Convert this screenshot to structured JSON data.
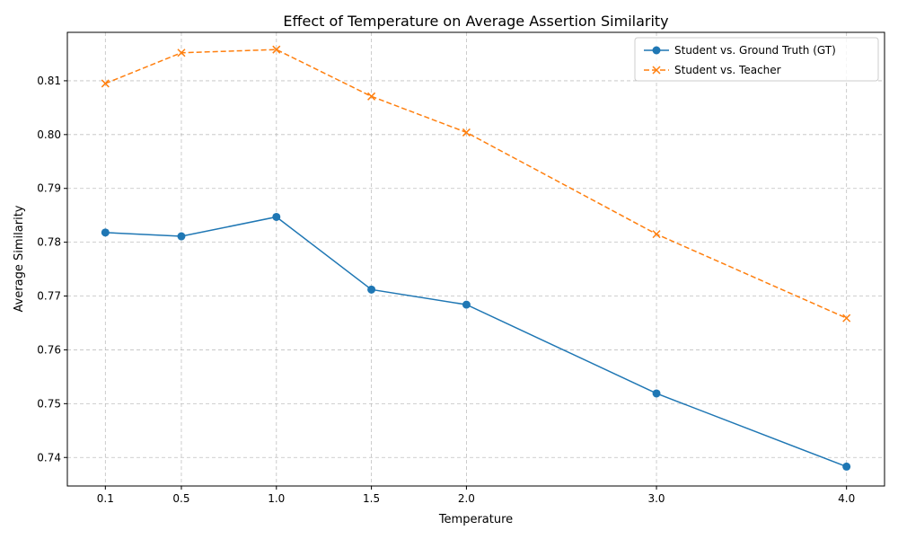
{
  "chart_data": {
    "type": "line",
    "title": "Effect of Temperature on Average Assertion Similarity",
    "xlabel": "Temperature",
    "ylabel": "Average Similarity",
    "x": [
      0.1,
      0.5,
      1.0,
      1.5,
      2.0,
      3.0,
      4.0
    ],
    "x_tick_labels": [
      "0.1",
      "0.5",
      "1.0",
      "1.5",
      "2.0",
      "3.0",
      "4.0"
    ],
    "xlim": [
      -0.1,
      4.2
    ],
    "ylim": [
      0.7347,
      0.819
    ],
    "y_ticks": [
      0.74,
      0.75,
      0.76,
      0.77,
      0.78,
      0.79,
      0.8,
      0.81
    ],
    "y_tick_labels": [
      "0.74",
      "0.75",
      "0.76",
      "0.77",
      "0.78",
      "0.79",
      "0.80",
      "0.81"
    ],
    "grid": true,
    "legend_position": "top-right",
    "series": [
      {
        "name": "Student vs. Ground Truth (GT)",
        "values": [
          0.7818,
          0.7811,
          0.7847,
          0.7712,
          0.7684,
          0.7519,
          0.7383
        ],
        "color": "#1f77b4",
        "line_style": "solid",
        "marker": "circle"
      },
      {
        "name": "Student vs. Teacher",
        "values": [
          0.8095,
          0.8152,
          0.8158,
          0.8071,
          0.8004,
          0.7815,
          0.7659
        ],
        "color": "#ff7f0e",
        "line_style": "dashed",
        "marker": "x"
      }
    ]
  }
}
